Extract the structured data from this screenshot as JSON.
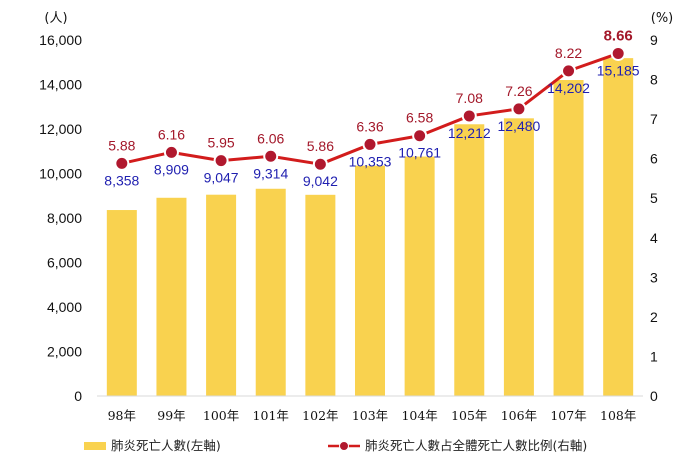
{
  "chart_data": {
    "type": "bar",
    "categories": [
      "98年",
      "99年",
      "100年",
      "101年",
      "102年",
      "103年",
      "104年",
      "105年",
      "106年",
      "107年",
      "108年"
    ],
    "series": [
      {
        "name": "肺炎死亡人數(左軸)",
        "type": "bar",
        "axis": "left",
        "values": [
          8358,
          8909,
          9047,
          9314,
          9042,
          10353,
          10761,
          12212,
          12480,
          14202,
          15185
        ],
        "labels": [
          "8,358",
          "8,909",
          "9,047",
          "9,314",
          "9,042",
          "10,353",
          "10,761",
          "12,212",
          "12,480",
          "14,202",
          "15,185"
        ]
      },
      {
        "name": "肺炎死亡人數占全體死亡人數比例(右軸)",
        "type": "line",
        "axis": "right",
        "values": [
          5.88,
          6.16,
          5.95,
          6.06,
          5.86,
          6.36,
          6.58,
          7.08,
          7.26,
          8.22,
          8.66
        ],
        "labels": [
          "5.88",
          "6.16",
          "5.95",
          "6.06",
          "5.86",
          "6.36",
          "6.58",
          "7.08",
          "7.26",
          "8.22",
          "8.66"
        ]
      }
    ],
    "y_left": {
      "unit": "(人)",
      "ylim": [
        0,
        16000
      ],
      "ticks": [
        0,
        2000,
        4000,
        6000,
        8000,
        10000,
        12000,
        14000,
        16000
      ],
      "tick_labels": [
        "0",
        "2,000",
        "4,000",
        "6,000",
        "8,000",
        "10,000",
        "12,000",
        "14,000",
        "16,000"
      ]
    },
    "y_right": {
      "unit": "(%)",
      "ylim": [
        0,
        9
      ],
      "ticks": [
        0,
        1,
        2,
        3,
        4,
        5,
        6,
        7,
        8,
        9
      ],
      "tick_labels": [
        "0",
        "1",
        "2",
        "3",
        "4",
        "5",
        "6",
        "7",
        "8",
        "9"
      ]
    },
    "grid": false,
    "legend_position": "bottom",
    "colors": {
      "bar": "#f9d24f",
      "line": "#d21c1c",
      "marker_fill": "#b0182e",
      "bar_label": "#1f1fb0",
      "line_label": "#a3182a"
    }
  }
}
